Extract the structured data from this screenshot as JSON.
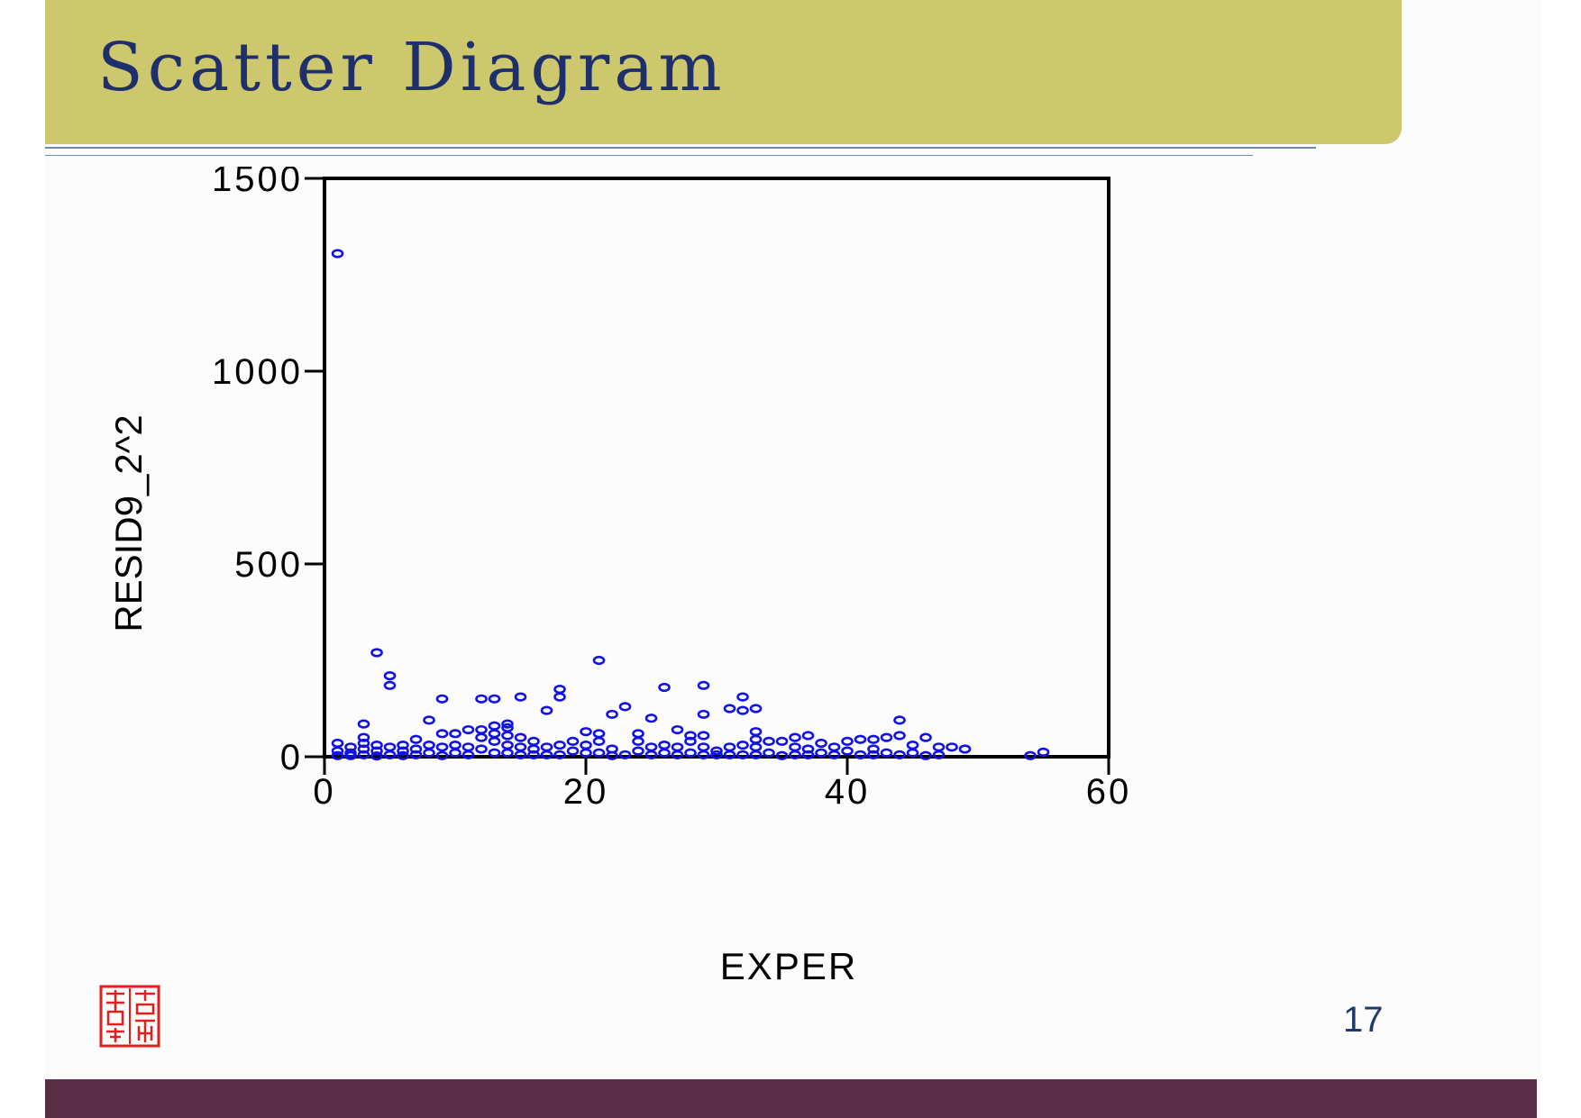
{
  "slide": {
    "title": "Scatter Diagram",
    "page_number": "17",
    "colors": {
      "title_bar": "#cdc86e",
      "title_text": "#1f2f6b",
      "bottom_band": "#5a2d47",
      "marker": "#1010e8",
      "seal": "#e0201c"
    }
  },
  "chart_data": {
    "type": "scatter",
    "xlabel": "EXPER",
    "ylabel": "RESID9_2^2",
    "xlim": [
      0,
      60
    ],
    "ylim": [
      0,
      1500
    ],
    "xticks": [
      0,
      20,
      40,
      60
    ],
    "yticks": [
      0,
      500,
      1000,
      1500
    ],
    "grid": false,
    "marker": "open circle",
    "series": [
      {
        "values": [
          [
            1,
            1305
          ],
          [
            1,
            35
          ],
          [
            1,
            15
          ],
          [
            1,
            3
          ],
          [
            2,
            25
          ],
          [
            2,
            10
          ],
          [
            2,
            3
          ],
          [
            3,
            85
          ],
          [
            3,
            50
          ],
          [
            3,
            35
          ],
          [
            3,
            20
          ],
          [
            3,
            5
          ],
          [
            4,
            270
          ],
          [
            4,
            30
          ],
          [
            4,
            15
          ],
          [
            4,
            2
          ],
          [
            5,
            210
          ],
          [
            5,
            185
          ],
          [
            5,
            25
          ],
          [
            5,
            5
          ],
          [
            6,
            30
          ],
          [
            6,
            15
          ],
          [
            6,
            3
          ],
          [
            7,
            45
          ],
          [
            7,
            20
          ],
          [
            7,
            5
          ],
          [
            8,
            95
          ],
          [
            8,
            30
          ],
          [
            8,
            10
          ],
          [
            9,
            150
          ],
          [
            9,
            60
          ],
          [
            9,
            25
          ],
          [
            9,
            3
          ],
          [
            10,
            60
          ],
          [
            10,
            30
          ],
          [
            10,
            10
          ],
          [
            11,
            70
          ],
          [
            11,
            25
          ],
          [
            11,
            5
          ],
          [
            12,
            150
          ],
          [
            12,
            70
          ],
          [
            12,
            50
          ],
          [
            12,
            20
          ],
          [
            13,
            150
          ],
          [
            13,
            80
          ],
          [
            13,
            60
          ],
          [
            13,
            40
          ],
          [
            13,
            10
          ],
          [
            14,
            85
          ],
          [
            14,
            75
          ],
          [
            14,
            55
          ],
          [
            14,
            30
          ],
          [
            14,
            10
          ],
          [
            15,
            155
          ],
          [
            15,
            50
          ],
          [
            15,
            25
          ],
          [
            15,
            5
          ],
          [
            16,
            40
          ],
          [
            16,
            20
          ],
          [
            16,
            5
          ],
          [
            17,
            120
          ],
          [
            17,
            25
          ],
          [
            17,
            5
          ],
          [
            18,
            175
          ],
          [
            18,
            155
          ],
          [
            18,
            30
          ],
          [
            18,
            5
          ],
          [
            19,
            40
          ],
          [
            19,
            15
          ],
          [
            20,
            65
          ],
          [
            20,
            30
          ],
          [
            20,
            10
          ],
          [
            21,
            250
          ],
          [
            21,
            60
          ],
          [
            21,
            40
          ],
          [
            21,
            10
          ],
          [
            22,
            110
          ],
          [
            22,
            20
          ],
          [
            22,
            3
          ],
          [
            23,
            130
          ],
          [
            23,
            5
          ],
          [
            24,
            60
          ],
          [
            24,
            40
          ],
          [
            24,
            15
          ],
          [
            25,
            100
          ],
          [
            25,
            25
          ],
          [
            25,
            5
          ],
          [
            26,
            180
          ],
          [
            26,
            30
          ],
          [
            26,
            10
          ],
          [
            27,
            70
          ],
          [
            27,
            25
          ],
          [
            27,
            5
          ],
          [
            28,
            55
          ],
          [
            28,
            40
          ],
          [
            28,
            10
          ],
          [
            29,
            185
          ],
          [
            29,
            110
          ],
          [
            29,
            55
          ],
          [
            29,
            25
          ],
          [
            29,
            5
          ],
          [
            30,
            15
          ],
          [
            30,
            5
          ],
          [
            31,
            125
          ],
          [
            31,
            25
          ],
          [
            31,
            5
          ],
          [
            32,
            155
          ],
          [
            32,
            120
          ],
          [
            32,
            30
          ],
          [
            32,
            5
          ],
          [
            33,
            125
          ],
          [
            33,
            65
          ],
          [
            33,
            45
          ],
          [
            33,
            25
          ],
          [
            33,
            5
          ],
          [
            34,
            40
          ],
          [
            34,
            10
          ],
          [
            35,
            40
          ],
          [
            35,
            3
          ],
          [
            36,
            50
          ],
          [
            36,
            25
          ],
          [
            36,
            5
          ],
          [
            37,
            55
          ],
          [
            37,
            20
          ],
          [
            37,
            5
          ],
          [
            38,
            35
          ],
          [
            38,
            10
          ],
          [
            39,
            25
          ],
          [
            39,
            5
          ],
          [
            40,
            40
          ],
          [
            40,
            15
          ],
          [
            41,
            45
          ],
          [
            41,
            5
          ],
          [
            42,
            45
          ],
          [
            42,
            20
          ],
          [
            42,
            5
          ],
          [
            43,
            50
          ],
          [
            43,
            10
          ],
          [
            44,
            95
          ],
          [
            44,
            55
          ],
          [
            44,
            5
          ],
          [
            45,
            30
          ],
          [
            45,
            10
          ],
          [
            46,
            50
          ],
          [
            46,
            3
          ],
          [
            47,
            25
          ],
          [
            47,
            5
          ],
          [
            48,
            25
          ],
          [
            49,
            20
          ],
          [
            54,
            3
          ],
          [
            55,
            12
          ]
        ]
      }
    ]
  }
}
